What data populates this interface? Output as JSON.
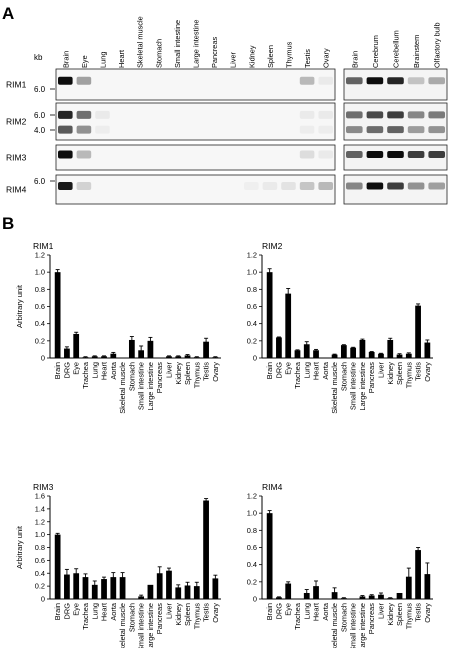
{
  "figure": {
    "panel_a_label": "A",
    "panel_b_label": "B",
    "kb_label": "kb",
    "blot_rows": [
      {
        "label": "RIM1",
        "markers": [
          "6.0"
        ]
      },
      {
        "label": "RIM2",
        "markers": [
          "6.0",
          "4.0"
        ]
      },
      {
        "label": "RIM3",
        "markers": []
      },
      {
        "label": "RIM4",
        "markers": [
          "6.0"
        ]
      }
    ],
    "blot_lanes_left": [
      "Brain",
      "Eye",
      "Lung",
      "Heart",
      "Skeletal muscle",
      "Stomach",
      "Small intestine",
      "Large intestine",
      "Pancreas",
      "Liver",
      "Kidney",
      "Spleen",
      "Thymus",
      "Testis",
      "Ovary"
    ],
    "blot_lanes_right": [
      "Brain",
      "Cerebrum",
      "Cerebellum",
      "Brainstem",
      "Olfactory bulb"
    ],
    "blot_intensity_left": [
      [
        0.95,
        0.35,
        0,
        0,
        0,
        0,
        0,
        0,
        0,
        0,
        0,
        0,
        0,
        0.25,
        0.05
      ],
      [
        0.85,
        0.55,
        0.05,
        0,
        0,
        0,
        0,
        0,
        0,
        0,
        0,
        0,
        0,
        0.05,
        0.05
      ],
      [
        0.95,
        0.25,
        0,
        0,
        0,
        0,
        0,
        0,
        0,
        0,
        0,
        0,
        0,
        0.1,
        0.05
      ],
      [
        0.9,
        0.15,
        0,
        0,
        0,
        0,
        0,
        0,
        0,
        0,
        0.03,
        0.05,
        0.08,
        0.2,
        0.25
      ]
    ],
    "blot_intensity_right": [
      [
        0.6,
        0.95,
        0.85,
        0.2,
        0.3
      ],
      [
        0.55,
        0.7,
        0.75,
        0.45,
        0.5
      ],
      [
        0.6,
        0.95,
        0.95,
        0.75,
        0.75
      ],
      [
        0.45,
        0.95,
        0.75,
        0.4,
        0.35
      ]
    ]
  },
  "chart_data": [
    {
      "type": "bar",
      "title": "RIM1",
      "ylabel": "Arbitrary unit",
      "ylim": [
        0,
        1.2
      ],
      "yticks": [
        "0",
        "0.2",
        "0.4",
        "0.6",
        "0.8",
        "1.0",
        "1.2"
      ],
      "categories": [
        "Brain",
        "DRG",
        "Eye",
        "Trachea",
        "Lung",
        "Heart",
        "Aorta",
        "Skeletal muscle",
        "Stomach",
        "Small intestine",
        "Large intestine",
        "Pancreas",
        "Liver",
        "Kidney",
        "Spleen",
        "Thymus",
        "Testis",
        "Ovary"
      ],
      "values": [
        1.0,
        0.11,
        0.28,
        0.01,
        0.02,
        0.02,
        0.05,
        0.0,
        0.21,
        0.09,
        0.2,
        0.0,
        0.02,
        0.02,
        0.03,
        0.01,
        0.19,
        0.01
      ],
      "errors": [
        0.03,
        0.02,
        0.02,
        0.005,
        0.005,
        0.005,
        0.015,
        0.0,
        0.04,
        0.05,
        0.04,
        0.0,
        0.005,
        0.005,
        0.01,
        0.005,
        0.04,
        0.005
      ]
    },
    {
      "type": "bar",
      "title": "RIM2",
      "ylabel": "",
      "ylim": [
        0,
        1.2
      ],
      "yticks": [
        "0",
        "0.2",
        "0.4",
        "0.6",
        "0.8",
        "1.0",
        "1.2"
      ],
      "categories": [
        "Brain",
        "DRG",
        "Eye",
        "Trachea",
        "Lung",
        "Heart",
        "Aorta",
        "Skeletal muscle",
        "Stomach",
        "Small intestine",
        "Large intestine",
        "Pancreas",
        "Liver",
        "Kidney",
        "Spleen",
        "Thymus",
        "Testis",
        "Ovary"
      ],
      "values": [
        1.0,
        0.24,
        0.75,
        0.09,
        0.16,
        0.09,
        0.0,
        0.04,
        0.15,
        0.12,
        0.21,
        0.07,
        0.05,
        0.21,
        0.04,
        0.05,
        0.61,
        0.18
      ],
      "errors": [
        0.04,
        0.005,
        0.06,
        0.005,
        0.03,
        0.01,
        0.0,
        0.005,
        0.005,
        0.005,
        0.01,
        0.005,
        0.005,
        0.02,
        0.01,
        0.01,
        0.02,
        0.03
      ]
    },
    {
      "type": "bar",
      "title": "RIM3",
      "ylabel": "Arbitrary unit",
      "ylim": [
        0,
        1.6
      ],
      "yticks": [
        "0",
        "0.2",
        "0.4",
        "0.6",
        "0.8",
        "1.0",
        "1.2",
        "1.4",
        "1.6"
      ],
      "categories": [
        "Brain",
        "DRG",
        "Eye",
        "Trachea",
        "Lung",
        "Heart",
        "Aorta",
        "Skeletal muscle",
        "Stomach",
        "Small intestine",
        "Large intestine",
        "Pancreas",
        "Liver",
        "Kidney",
        "Spleen",
        "Thymus",
        "Testis",
        "Ovary"
      ],
      "values": [
        1.0,
        0.38,
        0.4,
        0.34,
        0.22,
        0.31,
        0.34,
        0.34,
        0.0,
        0.04,
        0.22,
        0.4,
        0.44,
        0.18,
        0.21,
        0.2,
        1.53,
        0.32
      ],
      "errors": [
        0.02,
        0.08,
        0.07,
        0.05,
        0.06,
        0.03,
        0.07,
        0.07,
        0.0,
        0.02,
        0.0,
        0.1,
        0.04,
        0.04,
        0.05,
        0.06,
        0.03,
        0.05
      ]
    },
    {
      "type": "bar",
      "title": "RIM4",
      "ylabel": "",
      "ylim": [
        0,
        1.2
      ],
      "yticks": [
        "0",
        "0.2",
        "0.4",
        "0.6",
        "0.8",
        "1.0",
        "1.2"
      ],
      "categories": [
        "Brain",
        "DRG",
        "Eye",
        "Trachea",
        "Lung",
        "Heart",
        "Aorta",
        "Skeletal muscle",
        "Stomach",
        "Small intestine",
        "Large intestine",
        "Pancreas",
        "Liver",
        "Kidney",
        "Spleen",
        "Thymus",
        "Testis",
        "Ovary"
      ],
      "values": [
        1.0,
        0.02,
        0.18,
        0.0,
        0.07,
        0.15,
        0.0,
        0.08,
        0.01,
        0.0,
        0.03,
        0.04,
        0.05,
        0.01,
        0.07,
        0.26,
        0.57,
        0.29
      ],
      "errors": [
        0.03,
        0.005,
        0.02,
        0.0,
        0.04,
        0.06,
        0.0,
        0.05,
        0.005,
        0.0,
        0.01,
        0.01,
        0.02,
        0.005,
        0.0,
        0.1,
        0.03,
        0.13
      ]
    }
  ]
}
